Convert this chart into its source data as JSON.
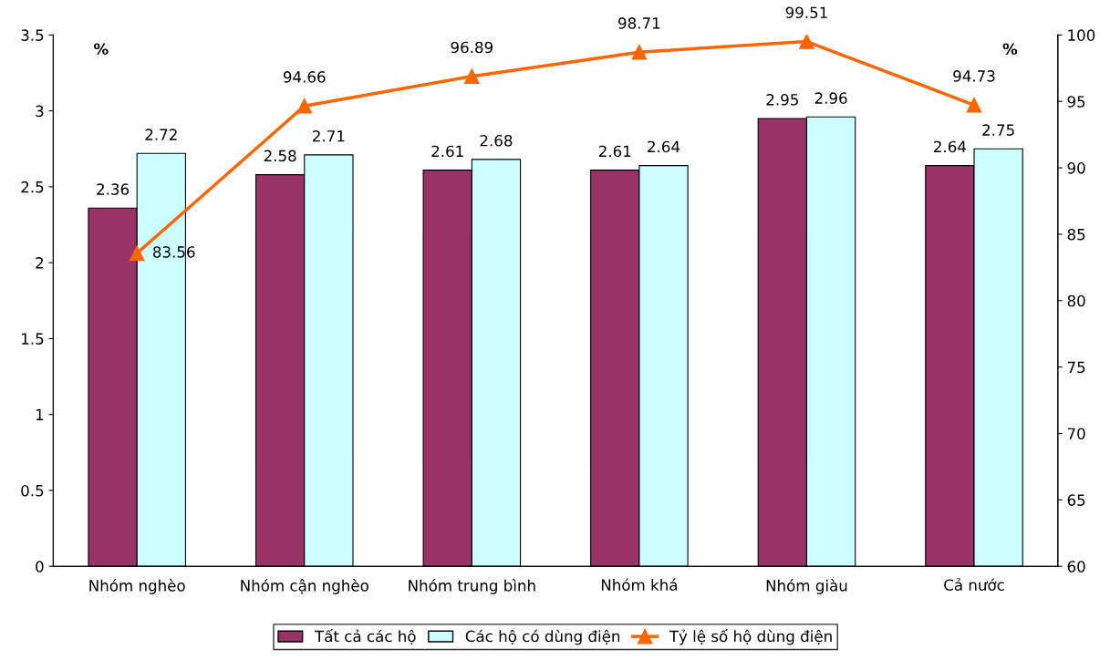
{
  "chart_data": {
    "type": "bar",
    "categories": [
      "Nhóm nghèo",
      "Nhóm cận nghèo",
      "Nhóm trung bình",
      "Nhóm khá",
      "Nhóm giàu",
      "Cả nước"
    ],
    "series": [
      {
        "name": "Tất cả các hộ",
        "color": "#993366",
        "values": [
          2.36,
          2.58,
          2.61,
          2.61,
          2.95,
          2.64
        ]
      },
      {
        "name": "Các hộ có dùng điện",
        "color": "#ccffff",
        "values": [
          2.72,
          2.71,
          2.68,
          2.64,
          2.96,
          2.75
        ]
      },
      {
        "name": "Tỷ lệ số hộ dùng điện",
        "color": "#ff6600",
        "type": "line",
        "axis": "y2",
        "marker": "triangle",
        "values": [
          83.56,
          94.66,
          96.89,
          98.71,
          99.51,
          94.73
        ]
      }
    ],
    "ylabel": "%",
    "y2label": "%",
    "ylim": [
      0,
      3.5
    ],
    "yticks": [
      0,
      0.5,
      1,
      1.5,
      2,
      2.5,
      3,
      3.5
    ],
    "y2lim": [
      60,
      100
    ],
    "y2ticks": [
      60,
      65,
      70,
      75,
      80,
      85,
      90,
      95,
      100
    ],
    "data_labels": true,
    "legend": "bottom",
    "grid": false
  }
}
